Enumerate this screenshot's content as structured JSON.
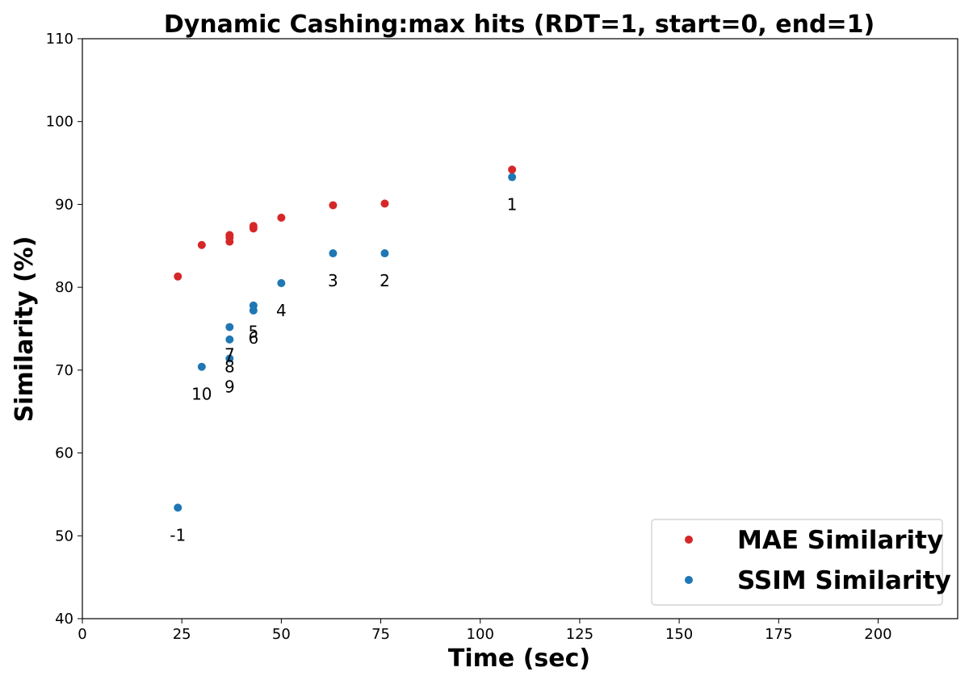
{
  "chart_data": {
    "type": "scatter",
    "title": "Dynamic Cashing:max hits (RDT=1, start=0, end=1)",
    "xlabel": "Time (sec)",
    "ylabel": "Similarity (%)",
    "xlim": [
      0,
      220
    ],
    "ylim": [
      40,
      110
    ],
    "xticks": [
      0,
      25,
      50,
      75,
      100,
      125,
      150,
      175,
      200
    ],
    "yticks": [
      40,
      50,
      60,
      70,
      80,
      90,
      100,
      110
    ],
    "grid": false,
    "legend_position": "lower-right",
    "series": [
      {
        "name": "MAE Similarity",
        "color": "#d62728",
        "x": [
          108,
          76,
          63,
          50,
          43,
          43,
          37,
          37,
          37,
          30,
          24
        ],
        "y": [
          94.2,
          90.1,
          89.9,
          88.4,
          87.4,
          87.1,
          86.3,
          86.0,
          85.5,
          85.1,
          81.3
        ]
      },
      {
        "name": "SSIM Similarity",
        "color": "#1f77b4",
        "x": [
          108,
          76,
          63,
          50,
          43,
          43,
          37,
          37,
          37,
          30,
          24
        ],
        "y": [
          93.3,
          84.1,
          84.1,
          80.5,
          77.8,
          77.2,
          75.2,
          73.7,
          71.4,
          70.4,
          53.4
        ]
      }
    ],
    "annotations": [
      {
        "text": "1",
        "x": 108,
        "y": 90.0
      },
      {
        "text": "2",
        "x": 76,
        "y": 80.8
      },
      {
        "text": "3",
        "x": 63,
        "y": 80.8
      },
      {
        "text": "4",
        "x": 50,
        "y": 77.2
      },
      {
        "text": "5",
        "x": 43,
        "y": 74.6
      },
      {
        "text": "6",
        "x": 43,
        "y": 73.9
      },
      {
        "text": "7",
        "x": 37,
        "y": 71.9
      },
      {
        "text": "8",
        "x": 37,
        "y": 70.4
      },
      {
        "text": "9",
        "x": 37,
        "y": 68.0
      },
      {
        "text": "10",
        "x": 30,
        "y": 67.1
      },
      {
        "text": "-1",
        "x": 24,
        "y": 50.1
      }
    ]
  }
}
